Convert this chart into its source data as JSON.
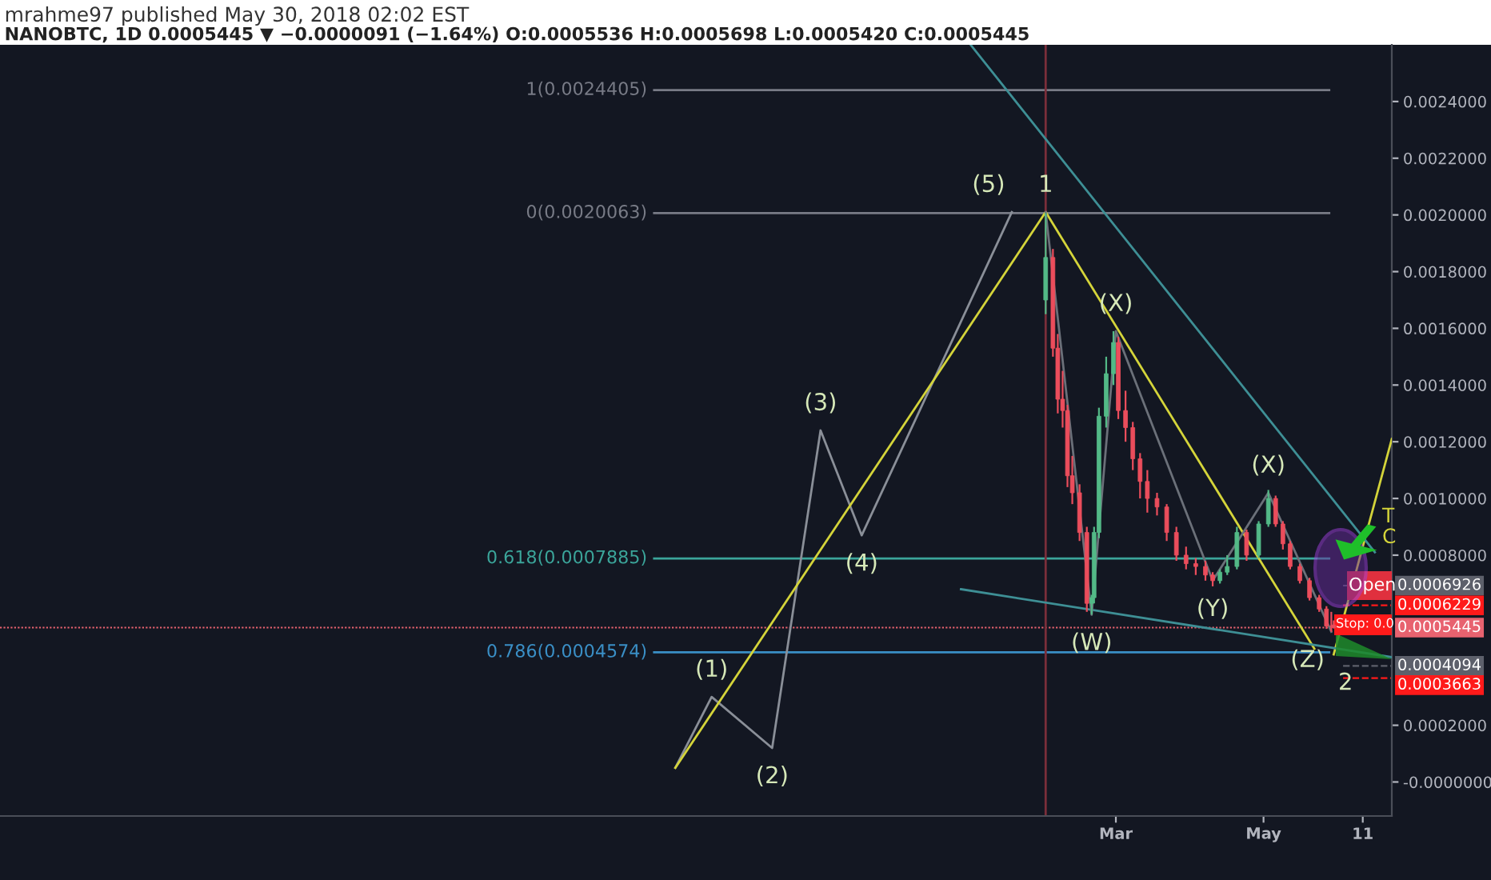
{
  "chart_data": {
    "type": "candlestick",
    "title": "mrahme97 published May 30, 2018 02:02 EST",
    "subtitle": "NANOBTC, 1D 0.0005445 ▼ −0.0000091 (−1.64%) O:0.0005536 H:0.0005698 L:0.0005420 C:0.0005445",
    "x": [
      "2018-01-31",
      "2018-02-03",
      "2018-02-05",
      "2018-02-07",
      "2018-02-09",
      "2018-02-11",
      "2018-02-14",
      "2018-02-17",
      "2018-02-19",
      "2018-02-20",
      "2018-02-22",
      "2018-02-25",
      "2018-02-28",
      "2018-03-02",
      "2018-03-05",
      "2018-03-08",
      "2018-03-11",
      "2018-03-14",
      "2018-03-18",
      "2018-03-22",
      "2018-03-26",
      "2018-03-30",
      "2018-04-03",
      "2018-04-07",
      "2018-04-10",
      "2018-04-13",
      "2018-04-16",
      "2018-04-20",
      "2018-04-24",
      "2018-04-29",
      "2018-05-03",
      "2018-05-06",
      "2018-05-09",
      "2018-05-12",
      "2018-05-16",
      "2018-05-20",
      "2018-05-24",
      "2018-05-27",
      "2018-05-29",
      "2018-05-30"
    ],
    "ohlc": [
      [
        0.0017,
        0.0020063,
        0.00165,
        0.00185
      ],
      [
        0.00185,
        0.00188,
        0.0015,
        0.00153
      ],
      [
        0.00153,
        0.00158,
        0.0013,
        0.00135
      ],
      [
        0.00135,
        0.00145,
        0.00125,
        0.00131
      ],
      [
        0.00131,
        0.00133,
        0.00104,
        0.00108
      ],
      [
        0.00108,
        0.00115,
        0.00098,
        0.00102
      ],
      [
        0.00102,
        0.00105,
        0.00085,
        0.00088
      ],
      [
        0.00088,
        0.0009,
        0.0006,
        0.00063
      ],
      [
        0.00063,
        0.00066,
        0.00059,
        0.00065
      ],
      [
        0.00065,
        0.0009,
        0.00063,
        0.00088
      ],
      [
        0.00088,
        0.00132,
        0.00086,
        0.00129
      ],
      [
        0.00129,
        0.0015,
        0.00125,
        0.00144
      ],
      [
        0.00144,
        0.00159,
        0.0014,
        0.00155
      ],
      [
        0.00155,
        0.00157,
        0.00128,
        0.00131
      ],
      [
        0.00131,
        0.00138,
        0.0012,
        0.00125
      ],
      [
        0.00125,
        0.00127,
        0.0011,
        0.00114
      ],
      [
        0.00114,
        0.00116,
        0.001,
        0.00106
      ],
      [
        0.00106,
        0.0011,
        0.00095,
        0.001
      ],
      [
        0.001,
        0.00102,
        0.00094,
        0.00097
      ],
      [
        0.00097,
        0.00098,
        0.00085,
        0.00088
      ],
      [
        0.00088,
        0.0009,
        0.00078,
        0.0008
      ],
      [
        0.0008,
        0.00083,
        0.00075,
        0.00077
      ],
      [
        0.00077,
        0.00079,
        0.00073,
        0.00076
      ],
      [
        0.00076,
        0.00078,
        0.00071,
        0.00073
      ],
      [
        0.00073,
        0.00074,
        0.00069,
        0.00071
      ],
      [
        0.00071,
        0.00075,
        0.0007,
        0.00074
      ],
      [
        0.00074,
        0.0008,
        0.00073,
        0.00076
      ],
      [
        0.00076,
        0.0009,
        0.00075,
        0.00088
      ],
      [
        0.00088,
        0.00089,
        0.00078,
        0.0008
      ],
      [
        0.0008,
        0.00092,
        0.00079,
        0.00091
      ],
      [
        0.00091,
        0.00103,
        0.0009,
        0.001
      ],
      [
        0.001,
        0.00101,
        0.0009,
        0.00091
      ],
      [
        0.00091,
        0.00092,
        0.00082,
        0.00084
      ],
      [
        0.00084,
        0.00085,
        0.00075,
        0.00076
      ],
      [
        0.00076,
        0.00077,
        0.0007,
        0.00071
      ],
      [
        0.00071,
        0.00072,
        0.00064,
        0.00065
      ],
      [
        0.00065,
        0.00066,
        0.0006,
        0.00061
      ],
      [
        0.00061,
        0.00062,
        0.00054,
        0.00055
      ],
      [
        0.00055,
        0.0006,
        0.00053,
        0.00055
      ],
      [
        0.0005536,
        0.0005698,
        0.000542,
        0.0005445
      ]
    ],
    "colors": [
      "#53b987",
      "#eb4d5c",
      "#eb4d5c",
      "#eb4d5c",
      "#eb4d5c",
      "#eb4d5c",
      "#eb4d5c",
      "#eb4d5c",
      "#53b987",
      "#53b987",
      "#53b987",
      "#53b987",
      "#53b987",
      "#eb4d5c",
      "#eb4d5c",
      "#eb4d5c",
      "#eb4d5c",
      "#eb4d5c",
      "#eb4d5c",
      "#eb4d5c",
      "#eb4d5c",
      "#eb4d5c",
      "#eb4d5c",
      "#eb4d5c",
      "#eb4d5c",
      "#53b987",
      "#53b987",
      "#53b987",
      "#eb4d5c",
      "#53b987",
      "#53b987",
      "#eb4d5c",
      "#eb4d5c",
      "#eb4d5c",
      "#eb4d5c",
      "#eb4d5c",
      "#eb4d5c",
      "#eb4d5c",
      "#eb4d5c",
      "#eb4d5c"
    ],
    "series": [
      {
        "type": "line",
        "color": "#8a8f98",
        "x": [
          "2017-08-31",
          "2017-09-15",
          "2017-10-10",
          "2017-10-30",
          "2017-11-16",
          "2018-01-17"
        ],
        "values": [
          5e-05,
          0.0003,
          0.00012,
          0.00124,
          0.00087,
          0.00201
        ]
      },
      {
        "type": "line",
        "color": "#d4d43a",
        "x": [
          "2017-08-31",
          "2018-01-31",
          "2018-05-22"
        ],
        "values": [
          5e-05,
          0.00201,
          0.00047
        ]
      },
      {
        "type": "line",
        "color": "#d4d43a",
        "x": [
          "2018-05-30",
          "2018-06-23"
        ],
        "values": [
          0.00045,
          0.00121
        ]
      },
      {
        "type": "line",
        "color": "#3e8f95",
        "x": [
          "2017-12-31",
          "2018-06-16"
        ],
        "values": [
          0.0026,
          0.00081
        ]
      },
      {
        "type": "line",
        "color": "#3e8f95",
        "x": [
          "2017-12-27",
          "2018-06-23"
        ],
        "values": [
          0.00068,
          0.00044
        ]
      },
      {
        "type": "line",
        "color": "#6b7079",
        "x": [
          "2018-01-31",
          "2018-02-19",
          "2018-03-01",
          "2018-04-10",
          "2018-05-03",
          "2018-05-29"
        ],
        "values": [
          0.00201,
          0.00059,
          0.00159,
          0.00071,
          0.00102,
          0.00053
        ]
      }
    ],
    "ref_lines": [
      {
        "axis": "y",
        "value": 0.0024405,
        "label": "1(0.0024405)",
        "color": "#787b86",
        "line_style": "solid"
      },
      {
        "axis": "y",
        "value": 0.0020063,
        "label": "0(0.0020063)",
        "color": "#787b86",
        "line_style": "solid"
      },
      {
        "axis": "y",
        "value": 0.0007885,
        "label": "0.618(0.0007885)",
        "color": "#3ba59a",
        "line_style": "solid"
      },
      {
        "axis": "y",
        "value": 0.0004574,
        "label": "0.786(0.0004574)",
        "color": "#3a8fc6",
        "line_style": "solid"
      },
      {
        "axis": "y",
        "value": 0.0005445,
        "label": "0.0005445",
        "color": "#e8626f",
        "line_style": "dotted"
      },
      {
        "axis": "y",
        "value": 0.0006926,
        "label": "0.0006926",
        "color": "#5d606b",
        "line_style": "dashed"
      },
      {
        "axis": "y",
        "value": 0.0006229,
        "label": "0.0006229",
        "color": "#ff1a1a",
        "line_style": "dashed"
      },
      {
        "axis": "y",
        "value": 0.0004094,
        "label": "0.0004094",
        "color": "#5d606b",
        "line_style": "dashed"
      },
      {
        "axis": "y",
        "value": 0.0003663,
        "label": "0.0003663",
        "color": "#ff1a1a",
        "line_style": "dashed"
      },
      {
        "axis": "x",
        "value": "2018-01-31",
        "label": null,
        "color": "#7a2e3a"
      }
    ],
    "annotations": [
      {
        "text": "(1)",
        "x": "2017-09-15",
        "y": 0.0003
      },
      {
        "text": "(2)",
        "x": "2017-10-10",
        "y": 0.00012
      },
      {
        "text": "(3)",
        "x": "2017-10-30",
        "y": 0.00124
      },
      {
        "text": "(4)",
        "x": "2017-11-16",
        "y": 0.00087
      },
      {
        "text": "(5)",
        "x": "2018-01-17",
        "y": 0.00201
      },
      {
        "text": "1",
        "x": "2018-01-31",
        "y": 0.00201
      },
      {
        "text": "(X)",
        "x": "2018-03-01",
        "y": 0.00159
      },
      {
        "text": "(W)",
        "x": "2018-02-19",
        "y": 0.00059
      },
      {
        "text": "(Y)",
        "x": "2018-04-10",
        "y": 0.00071
      },
      {
        "text": "(X)",
        "x": "2018-05-03",
        "y": 0.00102
      },
      {
        "text": "(Z)",
        "x": "2018-05-29",
        "y": 0.00053
      },
      {
        "text": "2",
        "x": "2018-05-30",
        "y": 0.00045
      },
      "T",
      "C",
      "Open",
      "Stop: 0.0"
    ],
    "xlim": [
      "2016-11-25",
      "2018-06-23"
    ],
    "xticks": [
      {
        "value": "2018-03-01",
        "label": "Mar"
      },
      {
        "value": "2018-05-01",
        "label": "May"
      },
      {
        "value": "2018-06-11",
        "label": "11"
      }
    ],
    "ylim": [
      -0.00012,
      0.0026
    ],
    "yticks": [
      {
        "value": 0,
        "label": "-0.0000000"
      },
      {
        "value": 0.0002,
        "label": "0.0002000"
      },
      {
        "value": 0.0008,
        "label": "0.0008000"
      },
      {
        "value": 0.001,
        "label": "0.0010000"
      },
      {
        "value": 0.0012,
        "label": "0.0012000"
      },
      {
        "value": 0.0014,
        "label": "0.0014000"
      },
      {
        "value": 0.0016,
        "label": "0.0016000"
      },
      {
        "value": 0.0018,
        "label": "0.0018000"
      },
      {
        "value": 0.002,
        "label": "0.0020000"
      },
      {
        "value": 0.0022,
        "label": "0.0022000"
      },
      {
        "value": 0.0024,
        "label": "0.0024000"
      }
    ],
    "grid": false,
    "legend": false
  }
}
